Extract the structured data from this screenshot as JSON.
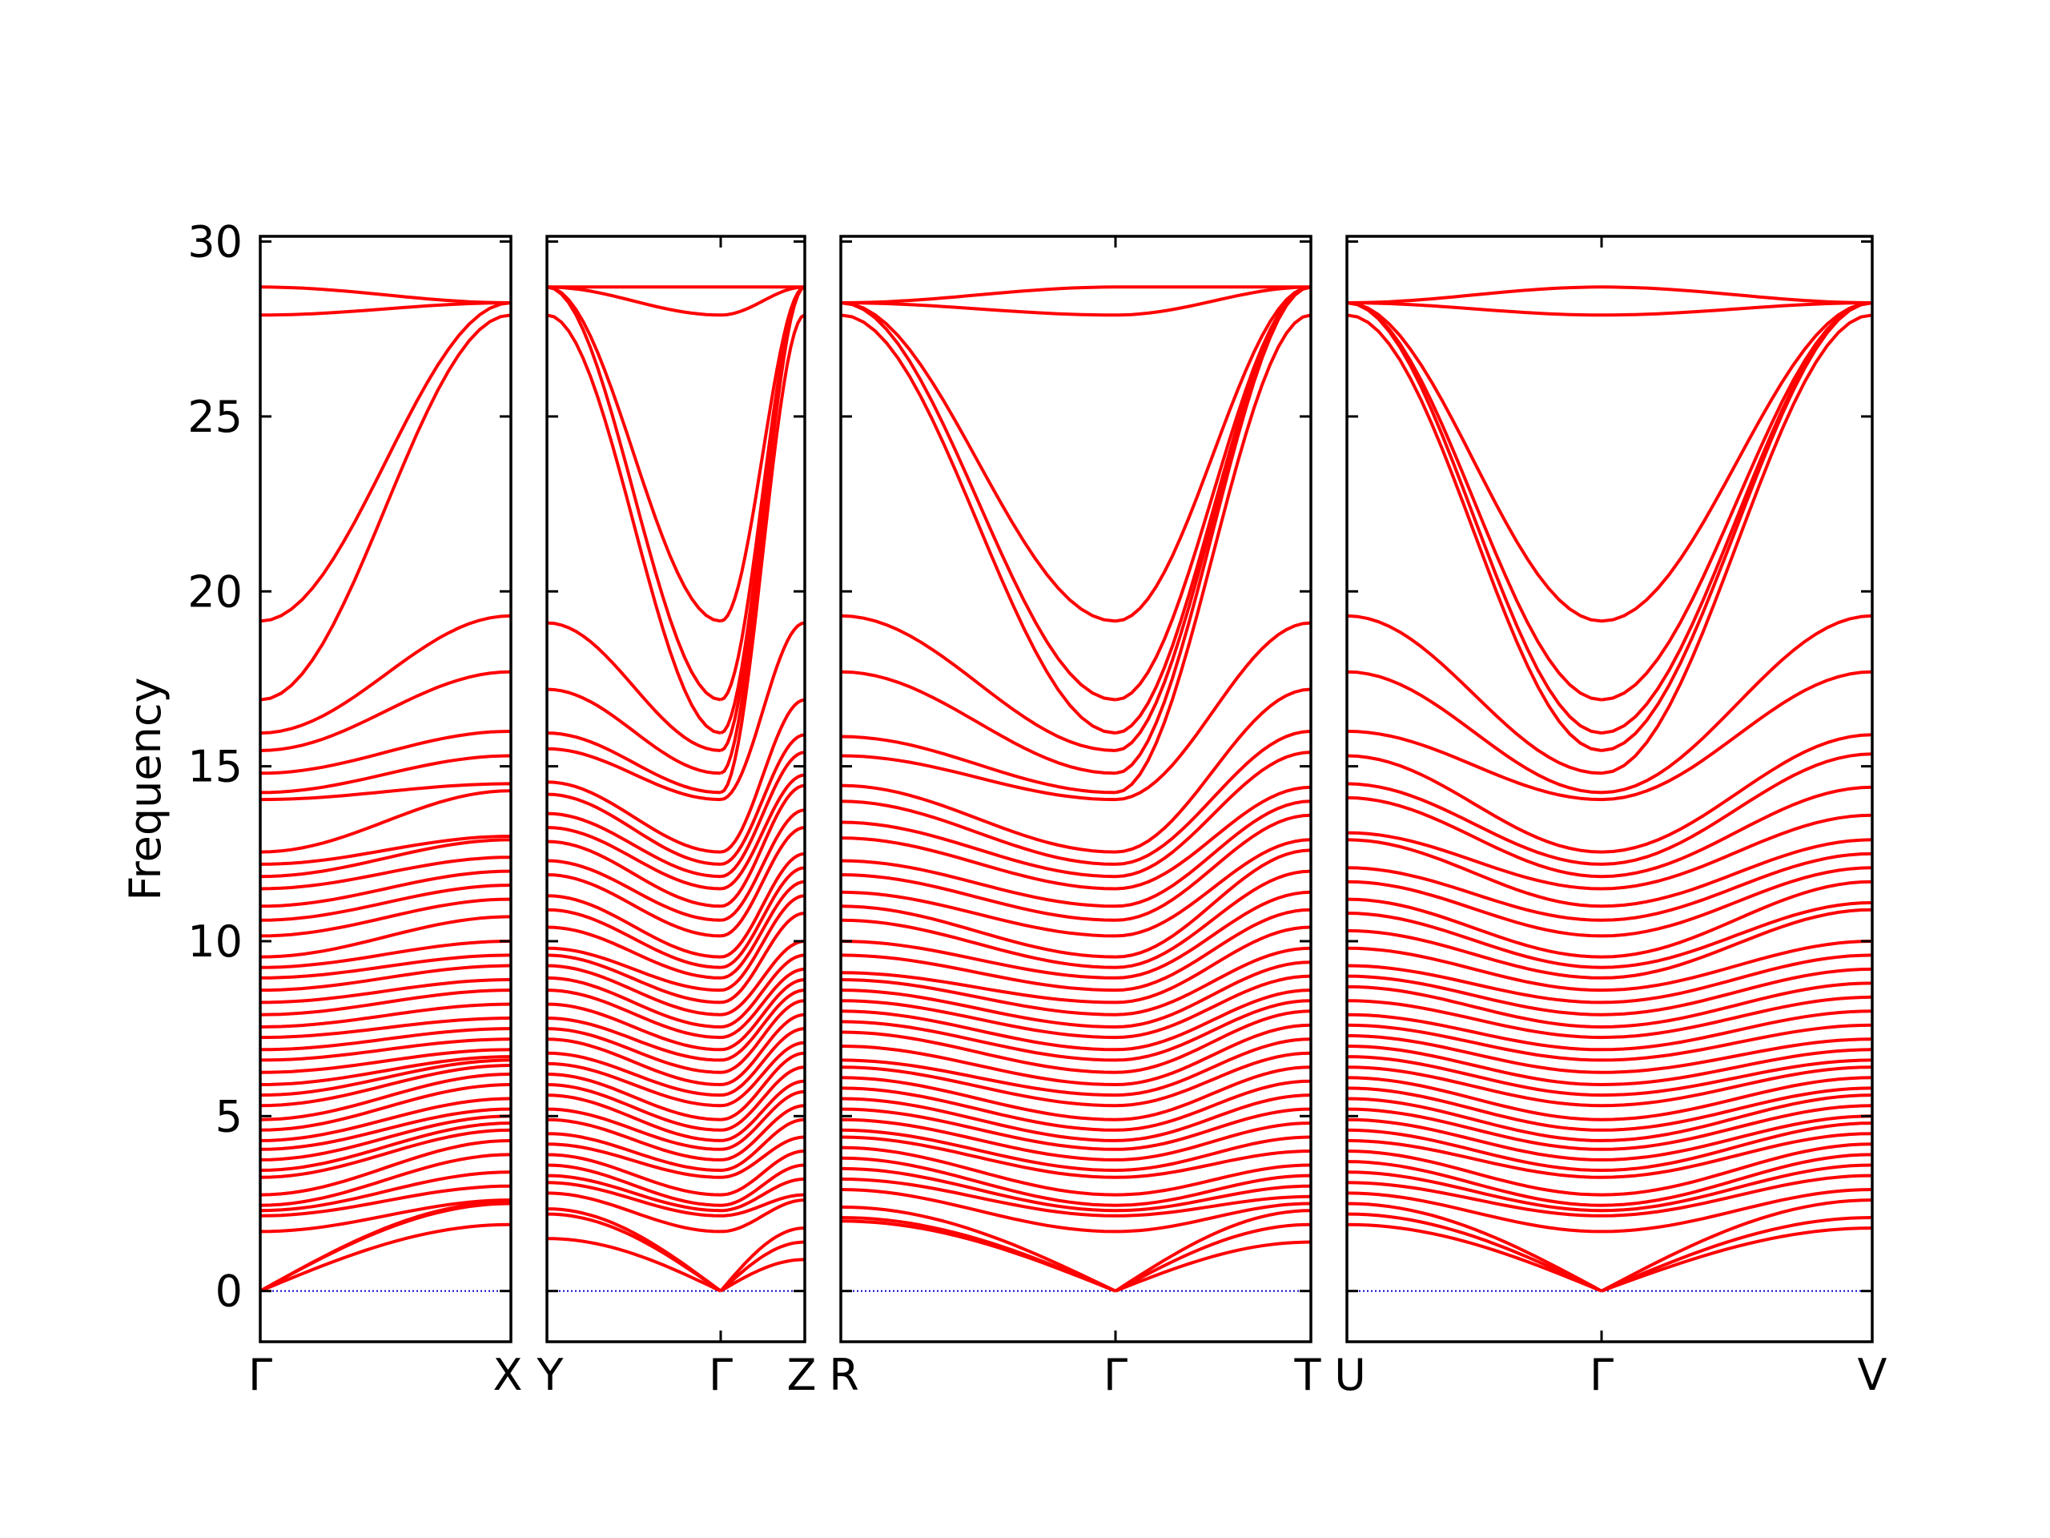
{
  "chart_data": {
    "type": "line",
    "title": "",
    "xlabel": "",
    "ylabel": "Frequency",
    "ylim": [
      -1.45,
      30.15
    ],
    "yticks": [
      "0",
      "5",
      "10",
      "15",
      "20",
      "25",
      "30"
    ],
    "grid": false,
    "line_color": "#ff0000",
    "zero_line_color": "#0000cc",
    "panels": [
      {
        "segments": [
          {
            "from": "Γ",
            "to": "X"
          }
        ],
        "tick_labels": [
          "Γ",
          "X"
        ],
        "bands_samples": {
          "Γ": [
            0,
            0,
            0,
            1.7,
            2.15,
            2.3,
            2.45,
            2.75,
            3.25,
            3.45,
            3.75,
            4.05,
            4.3,
            4.6,
            4.9,
            5.3,
            5.6,
            5.9,
            6.25,
            6.6,
            6.9,
            7.25,
            7.55,
            7.9,
            8.25,
            8.6,
            8.95,
            9.25,
            9.55,
            10.15,
            10.6,
            11.0,
            11.5,
            11.85,
            12.2,
            12.55,
            14.05,
            14.25,
            14.8,
            15.45,
            15.95,
            16.9,
            19.15,
            27.9,
            28.7
          ],
          "X": [
            1.9,
            2.5,
            2.55,
            2.6,
            3.0,
            3.4,
            3.9,
            4.3,
            4.6,
            4.8,
            5.0,
            5.2,
            5.5,
            5.9,
            6.2,
            6.45,
            6.6,
            6.7,
            6.9,
            7.2,
            7.5,
            7.8,
            8.2,
            8.6,
            8.9,
            9.3,
            9.6,
            10.0,
            10.7,
            11.2,
            11.6,
            12.0,
            12.4,
            12.9,
            13.0,
            14.3,
            14.5,
            15.3,
            16.0,
            17.7,
            19.3,
            27.9,
            28.25
          ]
        }
      },
      {
        "segments": [
          {
            "from": "Y",
            "to": "Γ"
          },
          {
            "from": "Γ",
            "to": "Z"
          }
        ],
        "tick_labels": [
          "Y",
          "Γ",
          "Z"
        ],
        "bands_samples": {
          "Y": [
            1.5,
            2.2,
            2.35,
            2.8,
            3.1,
            3.3,
            3.6,
            3.9,
            4.2,
            4.5,
            4.9,
            5.2,
            5.6,
            5.9,
            6.2,
            6.5,
            6.8,
            7.2,
            7.5,
            7.8,
            8.2,
            8.6,
            8.95,
            9.3,
            9.6,
            9.8,
            10.4,
            10.9,
            11.3,
            11.9,
            12.3,
            12.85,
            13.25,
            13.65,
            14.2,
            14.55,
            15.5,
            15.95,
            17.2,
            19.1,
            27.9,
            28.7
          ],
          "Z": [
            0.9,
            1.4,
            1.8,
            2.6,
            2.75,
            3.2,
            3.6,
            4.0,
            4.4,
            4.9,
            5.3,
            5.7,
            6.0,
            6.4,
            6.8,
            7.1,
            7.5,
            7.9,
            8.3,
            8.6,
            8.9,
            9.2,
            9.6,
            10.0,
            10.8,
            11.3,
            11.7,
            12.1,
            12.5,
            13.25,
            13.75,
            14.45,
            14.75,
            15.4,
            15.9,
            16.9,
            19.1,
            27.9,
            28.7
          ]
        }
      },
      {
        "segments": [
          {
            "from": "R",
            "to": "Γ"
          },
          {
            "from": "Γ",
            "to": "T"
          }
        ],
        "tick_labels": [
          "R",
          "Γ",
          "T"
        ],
        "bands_samples": {
          "R": [
            2.0,
            2.1,
            2.4,
            2.9,
            3.2,
            3.5,
            3.8,
            4.1,
            4.4,
            4.6,
            4.9,
            5.2,
            5.5,
            5.8,
            6.1,
            6.4,
            6.6,
            7.0,
            7.4,
            7.7,
            8.0,
            8.3,
            8.6,
            8.9,
            9.1,
            9.6,
            10.0,
            10.6,
            11.0,
            11.4,
            11.9,
            12.3,
            12.95,
            13.4,
            14.0,
            14.45,
            15.3,
            15.85,
            17.7,
            19.3,
            27.9,
            28.25
          ],
          "T": [
            1.4,
            1.9,
            2.3,
            2.5,
            2.7,
            3.0,
            3.3,
            3.6,
            4.0,
            4.4,
            4.8,
            5.2,
            5.6,
            6.0,
            6.4,
            6.8,
            7.2,
            7.6,
            8.0,
            8.3,
            8.6,
            9.0,
            9.4,
            9.8,
            10.4,
            10.9,
            11.4,
            12.0,
            12.6,
            12.9,
            13.6,
            14.0,
            14.4,
            15.4,
            16.0,
            17.2,
            19.1,
            27.9,
            28.7
          ]
        }
      },
      {
        "segments": [
          {
            "from": "U",
            "to": "Γ"
          },
          {
            "from": "Γ",
            "to": "V"
          }
        ],
        "tick_labels": [
          "U",
          "Γ",
          "V"
        ],
        "bands_samples": {
          "U": [
            1.9,
            2.2,
            2.5,
            2.8,
            3.1,
            3.4,
            3.7,
            4.0,
            4.3,
            4.6,
            4.9,
            5.2,
            5.5,
            5.8,
            6.1,
            6.4,
            6.7,
            7.0,
            7.3,
            7.6,
            7.9,
            8.3,
            8.7,
            9.0,
            9.3,
            9.8,
            10.3,
            10.8,
            11.2,
            11.7,
            12.1,
            12.9,
            13.1,
            14.1,
            14.5,
            15.3,
            16.0,
            17.7,
            19.3,
            27.9,
            28.25
          ],
          "V": [
            1.8,
            2.1,
            2.6,
            2.9,
            3.3,
            3.6,
            3.9,
            4.2,
            4.5,
            4.8,
            5.0,
            5.3,
            5.6,
            5.8,
            6.1,
            6.4,
            6.6,
            6.9,
            7.2,
            7.6,
            8.0,
            8.4,
            8.8,
            9.2,
            9.6,
            10.0,
            10.9,
            11.1,
            11.7,
            12.1,
            12.5,
            12.9,
            13.6,
            14.4,
            15.35,
            15.9,
            17.7,
            19.3,
            27.9,
            28.25
          ]
        }
      }
    ]
  }
}
